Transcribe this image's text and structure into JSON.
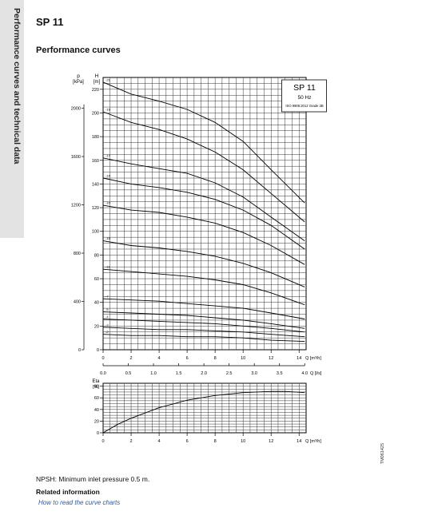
{
  "side_tab": {
    "label": "Performance curves and technical data"
  },
  "header": {
    "title": "SP 11",
    "subtitle": "Performance curves"
  },
  "chart_data": [
    {
      "type": "line",
      "title": "SP 11",
      "legend_box": [
        "SP 11",
        "50 Hz",
        "ISO 9906:2012 Grade 3B"
      ],
      "xlabel": "Q [m³/h]",
      "ylabel": "H [m]",
      "ylabel_secondary": "p [kPa]",
      "xlabel_secondary": "Q [l/s]",
      "xlim": [
        0,
        14.5
      ],
      "ylim": [
        0,
        230
      ],
      "grid": true,
      "x_ticks": [
        "0",
        "2",
        "4",
        "6",
        "8",
        "10",
        "12",
        "14"
      ],
      "y_ticks": [
        "0",
        "20",
        "40",
        "60",
        "80",
        "100",
        "120",
        "140",
        "160",
        "180",
        "200",
        "220"
      ],
      "kpa_ticks": [
        {
          "label": "0",
          "h": 0
        },
        {
          "label": "400",
          "h": 40.8
        },
        {
          "label": "800",
          "h": 81.6
        },
        {
          "label": "1200",
          "h": 122.4
        },
        {
          "label": "1600",
          "h": 163.2
        },
        {
          "label": "2000",
          "h": 203.9
        }
      ],
      "ls_ticks": [
        {
          "label": "0.0",
          "q": 0
        },
        {
          "label": "0.5",
          "q": 1.8
        },
        {
          "label": "1.0",
          "q": 3.6
        },
        {
          "label": "1.5",
          "q": 5.4
        },
        {
          "label": "2.0",
          "q": 7.2
        },
        {
          "label": "2.5",
          "q": 9.0
        },
        {
          "label": "3.0",
          "q": 10.8
        },
        {
          "label": "3.5",
          "q": 12.6
        },
        {
          "label": "4.0",
          "q": 14.4
        }
      ],
      "series": [
        {
          "name": "-21",
          "x": [
            0,
            2,
            4,
            6,
            8,
            10,
            12,
            14.4
          ],
          "y": [
            226,
            216,
            210,
            203,
            192,
            176,
            152,
            124
          ]
        },
        {
          "name": "-19",
          "x": [
            0,
            2,
            4,
            6,
            8,
            10,
            12,
            14.4
          ],
          "y": [
            201,
            192,
            186,
            178,
            167,
            152,
            132,
            108
          ]
        },
        {
          "name": "-17",
          "x": [
            0,
            2,
            4,
            6,
            8,
            10,
            12,
            14.4
          ],
          "y": [
            162,
            157,
            153,
            149,
            141,
            129,
            112,
            92
          ]
        },
        {
          "name": "-14",
          "x": [
            0,
            2,
            4,
            6,
            8,
            10,
            12,
            14.4
          ],
          "y": [
            145,
            140,
            137,
            133,
            127,
            118,
            105,
            85
          ]
        },
        {
          "name": "-10",
          "x": [
            0,
            2,
            4,
            6,
            8,
            10,
            12,
            14.4
          ],
          "y": [
            122,
            118,
            116,
            112,
            107,
            99,
            88,
            72
          ]
        },
        {
          "name": "-15",
          "x": [
            0,
            2,
            4,
            6,
            8,
            10,
            12,
            14.4
          ],
          "y": [
            92,
            88,
            86,
            83,
            79,
            73,
            65,
            53
          ]
        },
        {
          "name": "-11",
          "x": [
            0,
            2,
            4,
            6,
            8,
            10,
            12,
            14.4
          ],
          "y": [
            68,
            66,
            64,
            62,
            59,
            55,
            48,
            38
          ]
        },
        {
          "name": "-7",
          "x": [
            0,
            2,
            4,
            6,
            8,
            10,
            12,
            14.4
          ],
          "y": [
            43,
            42,
            41,
            39,
            37,
            35,
            31,
            26
          ]
        },
        {
          "name": "-5",
          "x": [
            0,
            2,
            4,
            6,
            8,
            10,
            12,
            14.4
          ],
          "y": [
            32,
            31,
            30,
            29,
            27,
            25,
            22,
            18
          ]
        },
        {
          "name": "-4",
          "x": [
            0,
            2,
            4,
            6,
            8,
            10,
            12,
            14.4
          ],
          "y": [
            26,
            25,
            24,
            23,
            22,
            20,
            18,
            15
          ]
        },
        {
          "name": "-3",
          "x": [
            0,
            2,
            4,
            6,
            8,
            10,
            12,
            14.4
          ],
          "y": [
            19,
            18,
            17,
            17,
            16,
            15,
            13,
            11
          ]
        },
        {
          "name": "-2",
          "x": [
            0,
            2,
            4,
            6,
            8,
            10,
            12,
            14.4
          ],
          "y": [
            13,
            12,
            12,
            11,
            11,
            10,
            8,
            7
          ]
        }
      ]
    },
    {
      "type": "line",
      "xlabel": "Q [m³/h]",
      "ylabel": "Eta [%]",
      "xlim": [
        0,
        14.5
      ],
      "ylim": [
        0,
        85
      ],
      "grid": true,
      "x_ticks": [
        "0",
        "2",
        "4",
        "6",
        "8",
        "10",
        "12",
        "14"
      ],
      "y_ticks": [
        "0",
        "20",
        "40",
        "60",
        "80"
      ],
      "series": [
        {
          "x": [
            0,
            1,
            2,
            4,
            6,
            8,
            10,
            12,
            13,
            14.4
          ],
          "y": [
            0,
            14,
            25,
            43,
            56,
            64,
            69,
            71,
            71,
            69
          ]
        }
      ]
    }
  ],
  "footer": {
    "npsh_note": "NPSH: Minimum inlet pressure 0.5 m.",
    "related_title": "Related information",
    "related_link": "How to read the curve charts",
    "code": "TM061425"
  }
}
